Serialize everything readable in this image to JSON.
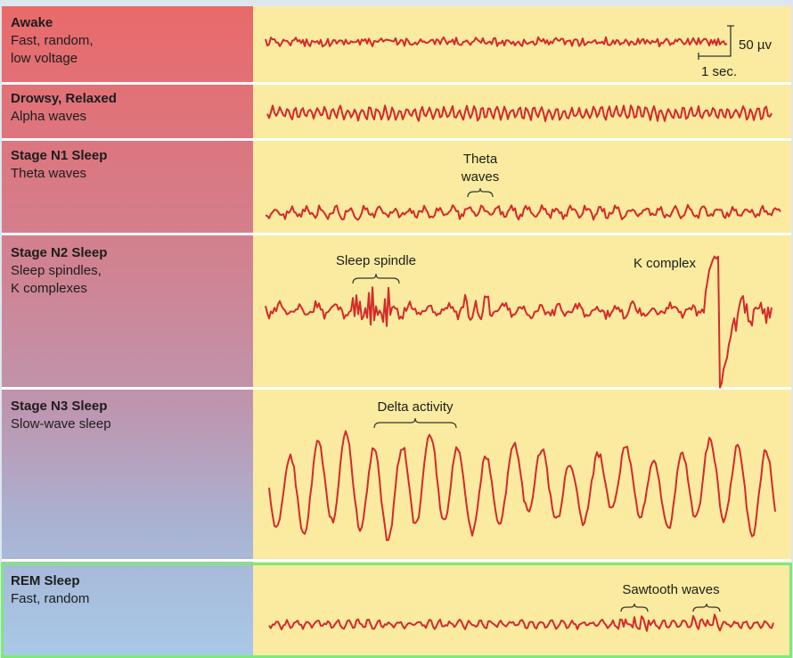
{
  "stages": [
    {
      "name": "Awake",
      "description": "Fast, random,\nlow voltage"
    },
    {
      "name": "Drowsy, Relaxed",
      "description": "Alpha waves"
    },
    {
      "name": "Stage N1 Sleep",
      "description": "Theta waves"
    },
    {
      "name": "Stage N2 Sleep",
      "description": "Sleep spindles,\nK complexes"
    },
    {
      "name": "Stage N3 Sleep",
      "description": "Slow-wave sleep"
    },
    {
      "name": "REM Sleep",
      "description": "Fast, random"
    }
  ],
  "scale": {
    "amplitude_label": "50 µv",
    "time_label": "1 sec."
  },
  "annotations": {
    "theta_line1": "Theta",
    "theta_line2": "waves",
    "sleep_spindle": "Sleep spindle",
    "k_complex": "K complex",
    "delta_activity": "Delta activity",
    "sawtooth_waves": "Sawtooth waves"
  },
  "colors": {
    "trace": "#d42a2a",
    "panel": "#fbeba0",
    "highlight_border": "#7ee87a"
  }
}
